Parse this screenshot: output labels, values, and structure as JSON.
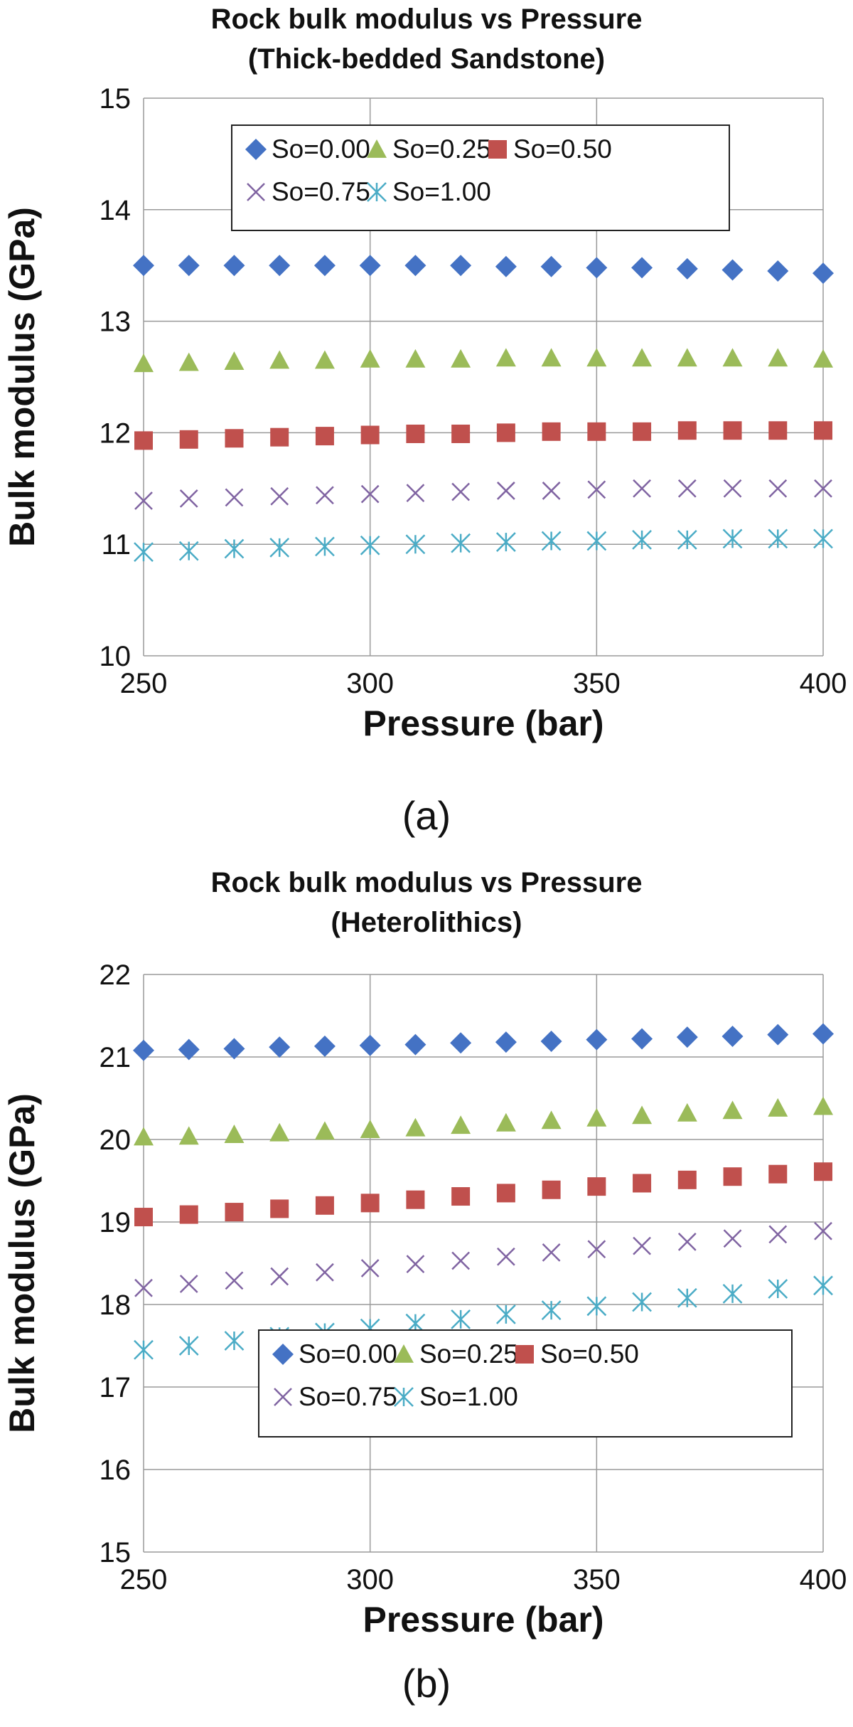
{
  "legend_names": [
    "So=0.00",
    "So=0.25",
    "So=0.50",
    "So=0.75",
    "So=1.00"
  ],
  "series_colors": [
    "#4472C4",
    "#9BBB59",
    "#C0504D",
    "#8064A2",
    "#4BACC6"
  ],
  "series_markers": [
    "diamond",
    "triangle",
    "square",
    "x",
    "star"
  ],
  "chart_data": [
    {
      "type": "scatter",
      "title": [
        "Rock bulk modulus vs Pressure",
        "(Thick-bedded Sandstone)"
      ],
      "caption": "(a)",
      "xlabel": "Pressure (bar)",
      "ylabel": "Bulk modulus (GPa)",
      "xlim": [
        250,
        400
      ],
      "ylim": [
        10,
        15
      ],
      "xticks": [
        250,
        300,
        350,
        400
      ],
      "yticks": [
        10,
        11,
        12,
        13,
        14,
        15
      ],
      "grid": true,
      "legend_position": "top",
      "x": [
        250,
        260,
        270,
        280,
        290,
        300,
        310,
        320,
        330,
        340,
        350,
        360,
        370,
        380,
        390,
        400
      ],
      "series": [
        {
          "name": "So=0.00",
          "values": [
            13.5,
            13.5,
            13.5,
            13.5,
            13.5,
            13.5,
            13.5,
            13.5,
            13.49,
            13.49,
            13.48,
            13.48,
            13.47,
            13.46,
            13.45,
            13.43
          ]
        },
        {
          "name": "So=0.25",
          "values": [
            12.62,
            12.63,
            12.64,
            12.65,
            12.65,
            12.66,
            12.66,
            12.66,
            12.67,
            12.67,
            12.67,
            12.67,
            12.67,
            12.67,
            12.67,
            12.66
          ]
        },
        {
          "name": "So=0.50",
          "values": [
            11.93,
            11.94,
            11.95,
            11.96,
            11.97,
            11.98,
            11.99,
            11.99,
            12.0,
            12.01,
            12.01,
            12.01,
            12.02,
            12.02,
            12.02,
            12.02
          ]
        },
        {
          "name": "So=0.75",
          "values": [
            11.39,
            11.41,
            11.42,
            11.43,
            11.44,
            11.45,
            11.46,
            11.47,
            11.48,
            11.48,
            11.49,
            11.5,
            11.5,
            11.5,
            11.5,
            11.5
          ]
        },
        {
          "name": "So=1.00",
          "values": [
            10.93,
            10.94,
            10.96,
            10.97,
            10.98,
            10.99,
            11.0,
            11.01,
            11.02,
            11.03,
            11.03,
            11.04,
            11.04,
            11.05,
            11.05,
            11.05
          ]
        }
      ]
    },
    {
      "type": "scatter",
      "title": [
        "Rock bulk modulus vs Pressure",
        "(Heterolithics)"
      ],
      "caption": "(b)",
      "xlabel": "Pressure (bar)",
      "ylabel": "Bulk modulus (GPa)",
      "xlim": [
        250,
        400
      ],
      "ylim": [
        15,
        22
      ],
      "xticks": [
        250,
        300,
        350,
        400
      ],
      "yticks": [
        15,
        16,
        17,
        18,
        19,
        20,
        21,
        22
      ],
      "grid": true,
      "legend_position": "bottom",
      "x": [
        250,
        260,
        270,
        280,
        290,
        300,
        310,
        320,
        330,
        340,
        350,
        360,
        370,
        380,
        390,
        400
      ],
      "series": [
        {
          "name": "So=0.00",
          "values": [
            21.08,
            21.09,
            21.1,
            21.12,
            21.13,
            21.14,
            21.15,
            21.17,
            21.18,
            21.19,
            21.21,
            21.22,
            21.24,
            21.25,
            21.27,
            21.28
          ]
        },
        {
          "name": "So=0.25",
          "values": [
            20.03,
            20.04,
            20.06,
            20.08,
            20.1,
            20.12,
            20.14,
            20.17,
            20.2,
            20.23,
            20.26,
            20.29,
            20.32,
            20.35,
            20.38,
            20.4
          ]
        },
        {
          "name": "So=0.50",
          "values": [
            19.06,
            19.09,
            19.12,
            19.16,
            19.2,
            19.23,
            19.27,
            19.31,
            19.35,
            19.39,
            19.43,
            19.47,
            19.51,
            19.55,
            19.58,
            19.61
          ]
        },
        {
          "name": "So=0.75",
          "values": [
            18.2,
            18.25,
            18.29,
            18.34,
            18.39,
            18.44,
            18.49,
            18.53,
            18.58,
            18.63,
            18.67,
            18.71,
            18.76,
            18.8,
            18.85,
            18.89
          ]
        },
        {
          "name": "So=1.00",
          "values": [
            17.45,
            17.5,
            17.56,
            17.61,
            17.66,
            17.71,
            17.77,
            17.82,
            17.88,
            17.93,
            17.98,
            18.03,
            18.08,
            18.13,
            18.19,
            18.23
          ]
        }
      ]
    }
  ]
}
